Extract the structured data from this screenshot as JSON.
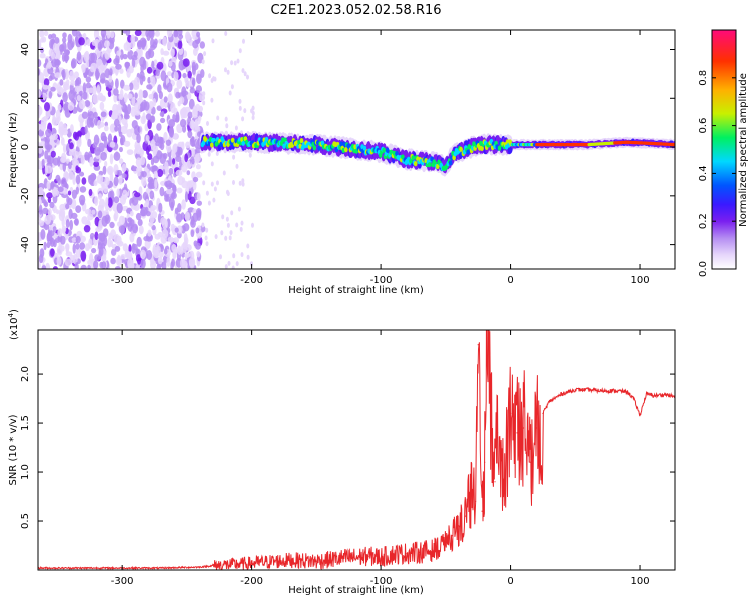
{
  "title": "C2E1.2023.052.02.58.R16",
  "chart_data": [
    {
      "type": "heatmap",
      "xlabel": "Height of straight line (km)",
      "ylabel": "Frequency (Hz)",
      "xlim": [
        -365,
        127
      ],
      "ylim": [
        -50,
        48
      ],
      "xticks": [
        -300,
        -200,
        -100,
        0,
        100
      ],
      "yticks": [
        -40,
        -20,
        0,
        20,
        40
      ],
      "colorbar": {
        "label": "Normalized spectral amplitude",
        "range": [
          0.0,
          1.0
        ],
        "ticks": [
          0.0,
          0.2,
          0.4,
          0.6,
          0.8
        ],
        "colormap": [
          "#ffffff",
          "#e6d6fb",
          "#b48cf2",
          "#7a1ff0",
          "#3a1aff",
          "#0055ff",
          "#00d8ff",
          "#00f060",
          "#c8f000",
          "#ffb000",
          "#ff3000",
          "#ff0a7a"
        ]
      },
      "features": {
        "noise_region_x": [
          -365,
          -238
        ],
        "ridge": {
          "x": [
            -238,
            -200,
            -150,
            -100,
            -80,
            -60,
            -50,
            -45,
            -40,
            -30,
            -20,
            0,
            20,
            60,
            90,
            127
          ],
          "y": [
            2,
            2,
            1,
            -2,
            -5,
            -6,
            -8,
            -4,
            -2,
            0,
            1,
            1,
            1,
            1,
            2,
            1
          ]
        }
      }
    },
    {
      "type": "line",
      "xlabel": "Height of straight line (km)",
      "ylabel": "SNR (10 * v/v)",
      "scale_note": "(x10",
      "scale_exp": "4",
      "scale_close": ")",
      "xlim": [
        -365,
        127
      ],
      "ylim": [
        0,
        2.45
      ],
      "xticks": [
        -300,
        -200,
        -100,
        0,
        100
      ],
      "yticks": [
        0.5,
        1.0,
        1.5,
        2.0
      ],
      "series": [
        {
          "color": "#e8262a",
          "x": [
            -365,
            -330,
            -300,
            -270,
            -240,
            -225,
            -210,
            -190,
            -170,
            -150,
            -130,
            -110,
            -100,
            -90,
            -80,
            -70,
            -60,
            -50,
            -45,
            -40,
            -35,
            -30,
            -27,
            -25,
            -22,
            -20,
            -18,
            -15,
            -12,
            -10,
            -5,
            0,
            5,
            10,
            15,
            20,
            25,
            30,
            40,
            50,
            60,
            70,
            80,
            90,
            95,
            100,
            105,
            110,
            120,
            127
          ],
          "y": [
            0.02,
            0.02,
            0.02,
            0.02,
            0.03,
            0.05,
            0.06,
            0.08,
            0.1,
            0.09,
            0.12,
            0.14,
            0.13,
            0.16,
            0.17,
            0.18,
            0.2,
            0.28,
            0.35,
            0.45,
            0.55,
            0.8,
            0.7,
            2.3,
            0.6,
            1.1,
            2.5,
            1.7,
            0.9,
            1.4,
            0.9,
            1.6,
            1.4,
            1.45,
            1.1,
            1.45,
            1.6,
            1.72,
            1.8,
            1.84,
            1.84,
            1.83,
            1.83,
            1.82,
            1.75,
            1.58,
            1.8,
            1.78,
            1.79,
            1.77
          ]
        }
      ]
    }
  ]
}
